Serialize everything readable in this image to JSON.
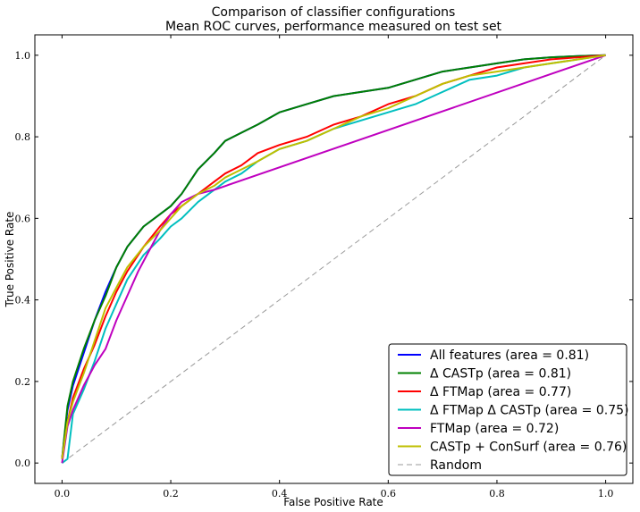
{
  "chart_data": {
    "type": "line",
    "title": "Comparison of classifier configurations",
    "subtitle": "Mean ROC curves, performance measured on test set",
    "xlabel": "False Positive Rate",
    "ylabel": "True Positive Rate",
    "xlim": [
      -0.05,
      1.05
    ],
    "ylim": [
      -0.05,
      1.05
    ],
    "xticks": [
      "0.0",
      "0.2",
      "0.4",
      "0.6",
      "0.8",
      "1.0"
    ],
    "yticks": [
      "0.0",
      "0.2",
      "0.4",
      "0.6",
      "0.8",
      "1.0"
    ],
    "grid": false,
    "legend_position": "lower-right",
    "series": [
      {
        "name": "All features (area = 0.81)",
        "color": "#0000ff",
        "dash": false,
        "x": [
          0.0,
          0.01,
          0.02,
          0.04,
          0.06,
          0.08,
          0.1,
          0.12,
          0.15,
          0.18,
          0.2,
          0.22,
          0.25,
          0.28,
          0.3,
          0.33,
          0.36,
          0.4,
          0.45,
          0.5,
          0.55,
          0.6,
          0.65,
          0.7,
          0.75,
          0.8,
          0.85,
          0.9,
          0.95,
          1.0
        ],
        "y": [
          0.01,
          0.13,
          0.19,
          0.27,
          0.35,
          0.42,
          0.48,
          0.53,
          0.58,
          0.61,
          0.63,
          0.66,
          0.72,
          0.76,
          0.79,
          0.81,
          0.83,
          0.86,
          0.88,
          0.9,
          0.91,
          0.92,
          0.94,
          0.96,
          0.97,
          0.98,
          0.99,
          0.995,
          0.998,
          1.0
        ]
      },
      {
        "name": "Δ CASTp (area = 0.81)",
        "color": "#008000",
        "dash": false,
        "x": [
          0.0,
          0.01,
          0.02,
          0.04,
          0.06,
          0.08,
          0.1,
          0.12,
          0.15,
          0.18,
          0.2,
          0.22,
          0.25,
          0.28,
          0.3,
          0.33,
          0.36,
          0.4,
          0.45,
          0.5,
          0.55,
          0.6,
          0.65,
          0.7,
          0.75,
          0.8,
          0.85,
          0.9,
          0.95,
          1.0
        ],
        "y": [
          0.01,
          0.14,
          0.2,
          0.28,
          0.35,
          0.41,
          0.48,
          0.53,
          0.58,
          0.61,
          0.63,
          0.66,
          0.72,
          0.76,
          0.79,
          0.81,
          0.83,
          0.86,
          0.88,
          0.9,
          0.91,
          0.92,
          0.94,
          0.96,
          0.97,
          0.98,
          0.99,
          0.995,
          0.998,
          1.0
        ]
      },
      {
        "name": "Δ FTMap (area = 0.77)",
        "color": "#ff0000",
        "dash": false,
        "x": [
          0.0,
          0.01,
          0.02,
          0.04,
          0.06,
          0.08,
          0.1,
          0.12,
          0.15,
          0.18,
          0.2,
          0.22,
          0.25,
          0.28,
          0.3,
          0.33,
          0.36,
          0.4,
          0.45,
          0.5,
          0.55,
          0.6,
          0.65,
          0.7,
          0.75,
          0.8,
          0.85,
          0.9,
          0.95,
          1.0
        ],
        "y": [
          0.01,
          0.1,
          0.16,
          0.23,
          0.29,
          0.36,
          0.42,
          0.47,
          0.53,
          0.58,
          0.61,
          0.63,
          0.66,
          0.69,
          0.71,
          0.73,
          0.76,
          0.78,
          0.8,
          0.83,
          0.85,
          0.88,
          0.9,
          0.93,
          0.95,
          0.97,
          0.98,
          0.99,
          0.995,
          1.0
        ]
      },
      {
        "name": "Δ FTMap Δ CASTp (area = 0.75)",
        "color": "#00bfbf",
        "dash": false,
        "x": [
          0.0,
          0.01,
          0.02,
          0.04,
          0.06,
          0.08,
          0.1,
          0.12,
          0.15,
          0.18,
          0.2,
          0.22,
          0.25,
          0.28,
          0.3,
          0.33,
          0.36,
          0.4,
          0.45,
          0.5,
          0.55,
          0.6,
          0.65,
          0.7,
          0.75,
          0.8,
          0.85,
          0.9,
          0.95,
          1.0
        ],
        "y": [
          0.0,
          0.01,
          0.12,
          0.18,
          0.25,
          0.33,
          0.39,
          0.45,
          0.51,
          0.55,
          0.58,
          0.6,
          0.64,
          0.67,
          0.69,
          0.71,
          0.74,
          0.77,
          0.79,
          0.82,
          0.84,
          0.86,
          0.88,
          0.91,
          0.94,
          0.95,
          0.97,
          0.98,
          0.99,
          1.0
        ]
      },
      {
        "name": "FTMap (area = 0.72)",
        "color": "#bf00bf",
        "dash": false,
        "x": [
          0.0,
          0.01,
          0.02,
          0.04,
          0.06,
          0.08,
          0.1,
          0.12,
          0.14,
          0.16,
          0.18,
          0.2,
          0.22,
          0.25,
          0.28,
          1.0
        ],
        "y": [
          0.0,
          0.09,
          0.13,
          0.19,
          0.24,
          0.28,
          0.35,
          0.41,
          0.47,
          0.52,
          0.57,
          0.61,
          0.64,
          0.66,
          0.67,
          1.0
        ]
      },
      {
        "name": "CASTp + ConSurf (area = 0.76)",
        "color": "#bfbf00",
        "dash": false,
        "x": [
          0.0,
          0.01,
          0.02,
          0.04,
          0.06,
          0.08,
          0.1,
          0.12,
          0.15,
          0.18,
          0.2,
          0.22,
          0.25,
          0.28,
          0.3,
          0.33,
          0.36,
          0.4,
          0.45,
          0.5,
          0.55,
          0.6,
          0.65,
          0.7,
          0.75,
          0.8,
          0.85,
          0.9,
          0.95,
          1.0
        ],
        "y": [
          0.01,
          0.1,
          0.15,
          0.22,
          0.3,
          0.38,
          0.43,
          0.48,
          0.53,
          0.57,
          0.6,
          0.63,
          0.66,
          0.68,
          0.7,
          0.72,
          0.74,
          0.77,
          0.79,
          0.82,
          0.85,
          0.87,
          0.9,
          0.93,
          0.95,
          0.96,
          0.97,
          0.98,
          0.99,
          1.0
        ]
      },
      {
        "name": "Random",
        "color": "#999999",
        "dash": true,
        "x": [
          0.0,
          1.0
        ],
        "y": [
          0.0,
          1.0
        ]
      }
    ]
  }
}
